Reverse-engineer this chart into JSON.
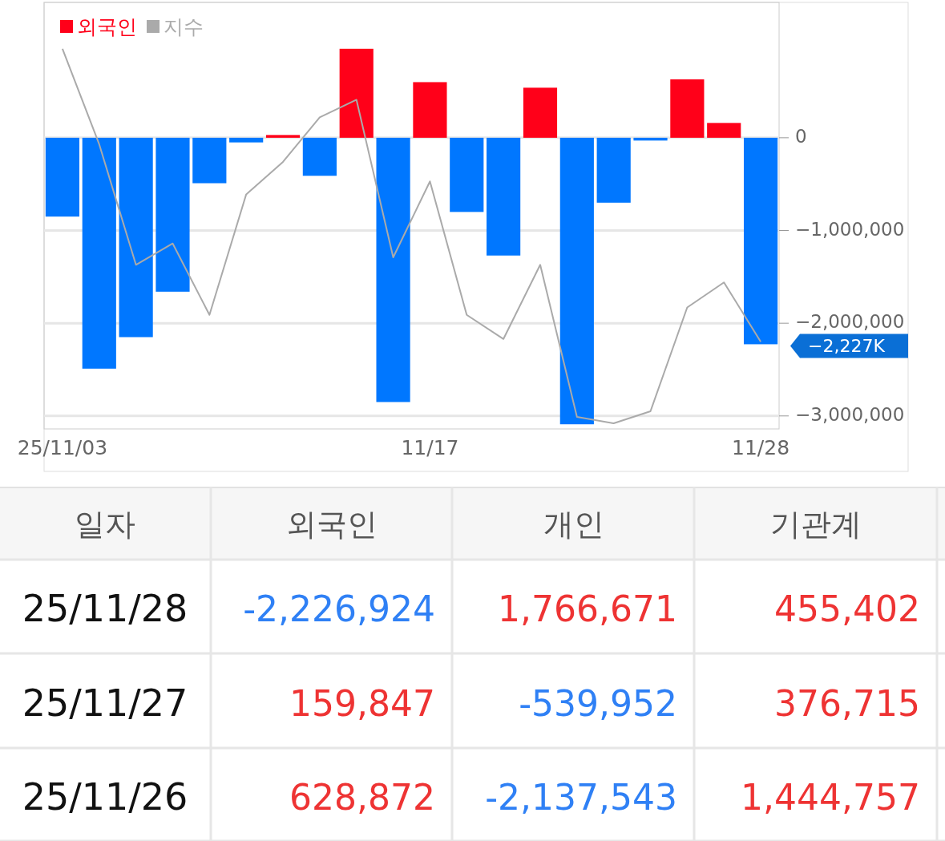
{
  "chart_data": [
    {
      "type": "bar",
      "categories": [
        "25/11/03",
        null,
        null,
        null,
        null,
        null,
        null,
        null,
        null,
        null,
        "11/17",
        null,
        null,
        null,
        null,
        null,
        null,
        null,
        null,
        "11/28"
      ],
      "series": [
        {
          "name": "외국인",
          "type": "bar",
          "color": "#ff0019",
          "colors": [
            "#0077ff",
            "#0077ff",
            "#0077ff",
            "#0077ff",
            "#0077ff",
            "#0077ff",
            "#ff0019",
            "#0077ff",
            "#ff0019",
            "#0077ff",
            "#ff0019",
            "#0077ff",
            "#0077ff",
            "#ff0019",
            "#0077ff",
            "#0077ff",
            "#0077ff",
            "#ff0019",
            "#ff0019",
            "#0077ff"
          ],
          "values": [
            -850000,
            -2490000,
            -2150000,
            -1660000,
            -490000,
            -50000,
            30000,
            -410000,
            960000,
            -2850000,
            600000,
            -800000,
            -1270000,
            540000,
            -3090000,
            -700000,
            -30000,
            630000,
            160000,
            -2227000
          ]
        },
        {
          "name": "지수",
          "type": "line",
          "color": "#aaaaaa",
          "values": [
            960000,
            -70000,
            -1370000,
            -1140000,
            -1910000,
            -610000,
            -260000,
            220000,
            410000,
            -1290000,
            -470000,
            -1910000,
            -2170000,
            -1370000,
            -3010000,
            -3080000,
            -2950000,
            -1830000,
            -1560000,
            -2200000
          ]
        }
      ],
      "ylim": [
        -3140000,
        1460000
      ],
      "yticks": [
        0,
        {
          "value": -1000000,
          "label": "−1,000,000"
        },
        {
          "value": -2000000,
          "label": "−2,000,000"
        },
        {
          "value": -3000000,
          "label": "−3,000,000"
        }
      ],
      "grid": "y",
      "legend": "top left",
      "annotations": [
        "−2,227K"
      ]
    },
    {
      "type": "other",
      "annotations": [
        "일자",
        "외국인",
        "개인",
        "기관계",
        "25/11/28",
        "-2,226,924",
        "1,766,671",
        "455,402",
        "25/11/27",
        "159,847",
        "-539,952",
        "376,715",
        "25/11/26",
        "628,872",
        "-2,137,543",
        "1,444,757"
      ],
      "colors": [
        "#555555",
        "#555555",
        "#555555",
        "#555555",
        "#111111",
        "#2f80f5",
        "#ee3333",
        "#ee3333",
        "#111111",
        "#ee3333",
        "#2f80f5",
        "#ee3333",
        "#111111",
        "#ee3333",
        "#2f80f5",
        "#ee3333"
      ]
    }
  ]
}
